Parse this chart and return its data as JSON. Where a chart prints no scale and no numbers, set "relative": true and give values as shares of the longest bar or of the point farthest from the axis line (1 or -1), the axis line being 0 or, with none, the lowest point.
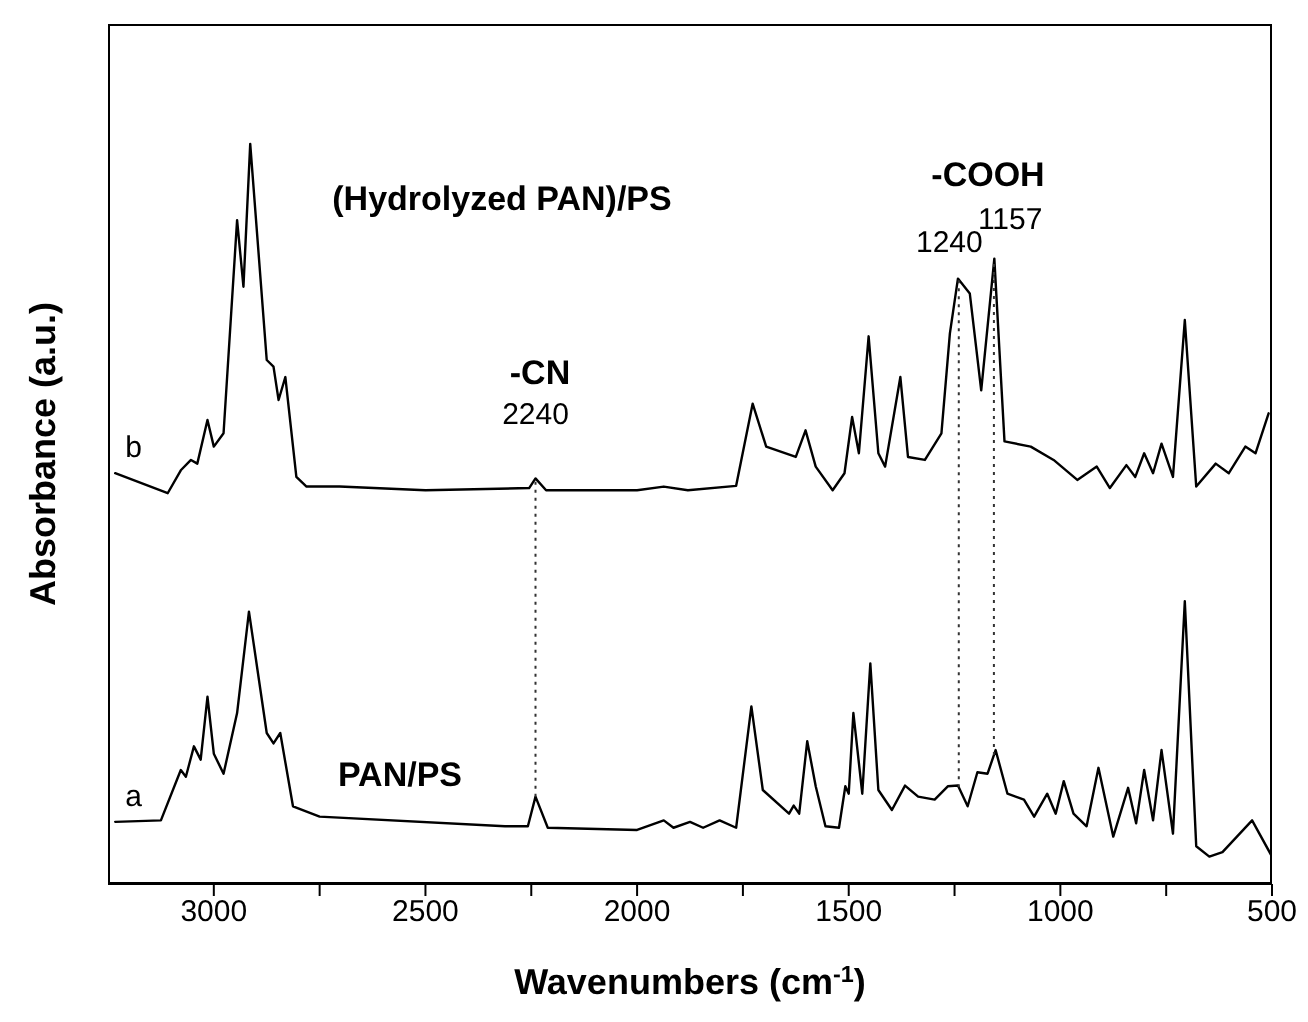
{
  "chart_data": {
    "type": "line",
    "xlabel": "Wavenumbers (cm$^{-1}$)",
    "ylabel": "Absorbance (a.u.)",
    "relative": true,
    "tick_labels": "x",
    "marker": "none",
    "line_style": "solid",
    "xlim": [
      3250,
      500
    ],
    "xticks": [
      3000,
      {
        "value": 2750,
        "label": null
      },
      2500,
      {
        "value": 2250,
        "label": null
      },
      2000,
      {
        "value": 1750,
        "label": null
      },
      1500,
      {
        "value": 1250,
        "label": null
      },
      1000,
      {
        "value": 750,
        "label": null
      },
      500
    ],
    "series": [
      {
        "name": "a",
        "color": "#000000",
        "x": [
          3233,
          3125,
          3078,
          3066,
          3047,
          3031,
          3015,
          3000,
          2977,
          2945,
          2917,
          2875,
          2859,
          2843,
          2813,
          2750,
          2312,
          2258,
          2240,
          2211,
          2000,
          1937,
          1914,
          1875,
          1844,
          1805,
          1766,
          1730,
          1703,
          1641,
          1630,
          1617,
          1598,
          1578,
          1555,
          1523,
          1508,
          1500,
          1489,
          1468,
          1449,
          1430,
          1398,
          1367,
          1336,
          1297,
          1266,
          1242,
          1219,
          1196,
          1172,
          1153,
          1125,
          1086,
          1062,
          1031,
          1011,
          992,
          969,
          938,
          910,
          875,
          840,
          821,
          802,
          781,
          761,
          734,
          706,
          679,
          648,
          617,
          547,
          500
        ],
        "values": [
          0.084,
          0.086,
          0.154,
          0.145,
          0.186,
          0.168,
          0.253,
          0.176,
          0.149,
          0.231,
          0.368,
          0.204,
          0.19,
          0.204,
          0.105,
          0.091,
          0.078,
          0.078,
          0.118,
          0.076,
          0.073,
          0.086,
          0.076,
          0.084,
          0.076,
          0.086,
          0.076,
          0.24,
          0.127,
          0.095,
          0.106,
          0.095,
          0.193,
          0.132,
          0.078,
          0.076,
          0.132,
          0.122,
          0.231,
          0.122,
          0.298,
          0.127,
          0.1,
          0.133,
          0.118,
          0.114,
          0.132,
          0.133,
          0.105,
          0.151,
          0.149,
          0.181,
          0.122,
          0.114,
          0.091,
          0.122,
          0.095,
          0.139,
          0.095,
          0.078,
          0.157,
          0.064,
          0.13,
          0.082,
          0.154,
          0.086,
          0.181,
          0.068,
          0.382,
          0.051,
          0.037,
          0.043,
          0.086,
          0.037
        ]
      },
      {
        "name": "b",
        "color": "#000000",
        "x": [
          3233,
          3109,
          3078,
          3054,
          3039,
          3015,
          3000,
          2977,
          2945,
          2930,
          2914,
          2875,
          2859,
          2847,
          2831,
          2805,
          2781,
          2703,
          2500,
          2255,
          2240,
          2215,
          2000,
          1937,
          1880,
          1766,
          1727,
          1695,
          1625,
          1602,
          1578,
          1538,
          1510,
          1492,
          1476,
          1453,
          1430,
          1414,
          1378,
          1360,
          1320,
          1281,
          1261,
          1242,
          1214,
          1187,
          1156,
          1132,
          1070,
          1016,
          960,
          914,
          883,
          844,
          823,
          802,
          781,
          761,
          734,
          706,
          679,
          633,
          602,
          563,
          539,
          508
        ],
        "values": [
          0.555,
          0.528,
          0.559,
          0.573,
          0.568,
          0.627,
          0.591,
          0.609,
          0.897,
          0.807,
          1,
          0.708,
          0.699,
          0.654,
          0.685,
          0.55,
          0.537,
          0.537,
          0.532,
          0.535,
          0.548,
          0.532,
          0.532,
          0.537,
          0.532,
          0.538,
          0.649,
          0.591,
          0.577,
          0.613,
          0.564,
          0.532,
          0.555,
          0.631,
          0.582,
          0.74,
          0.582,
          0.564,
          0.685,
          0.577,
          0.573,
          0.609,
          0.744,
          0.818,
          0.798,
          0.667,
          0.845,
          0.598,
          0.591,
          0.573,
          0.546,
          0.564,
          0.535,
          0.566,
          0.55,
          0.582,
          0.555,
          0.595,
          0.55,
          0.762,
          0.537,
          0.568,
          0.555,
          0.591,
          0.582,
          0.636
        ]
      }
    ],
    "ref_lines": [
      {
        "axis": "x",
        "value": 2240,
        "label": "2240",
        "line_style": "dotted",
        "color": "#333333"
      },
      {
        "axis": "x",
        "value": 1240,
        "label": "1240",
        "line_style": "dotted",
        "color": "#333333"
      },
      {
        "axis": "x",
        "value": 1157,
        "label": "1157",
        "line_style": "dotted",
        "color": "#333333"
      }
    ],
    "annotations": [
      "(Hydrolyzed PAN)/PS",
      "PAN/PS",
      "-CN",
      "-COOH"
    ]
  }
}
